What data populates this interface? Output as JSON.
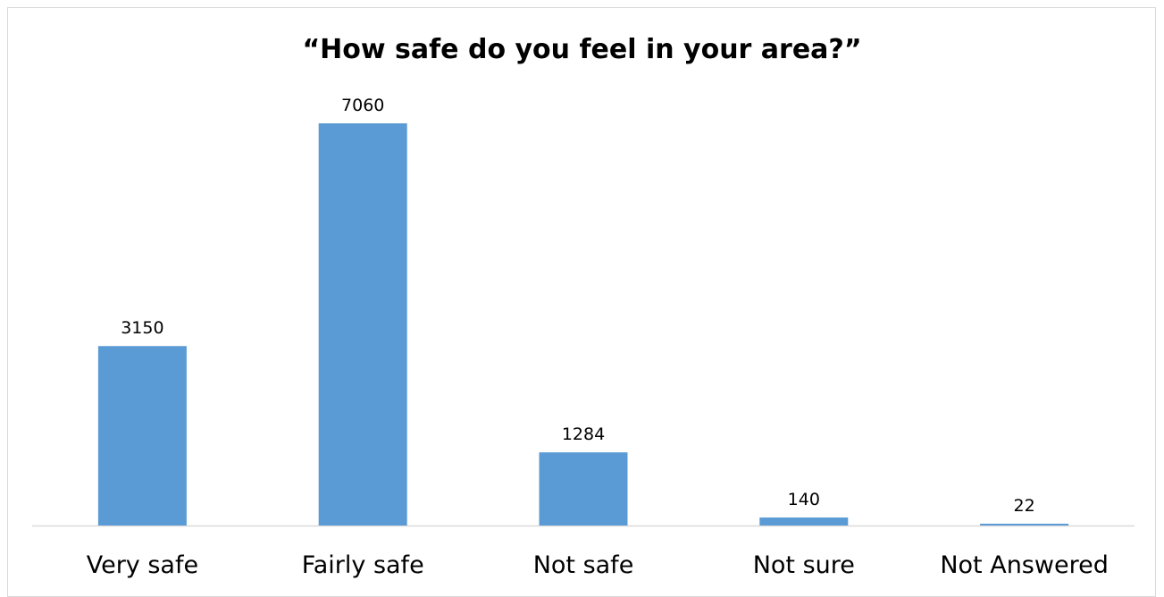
{
  "chart_data": {
    "type": "bar",
    "title": "“How safe do you feel in your area?”",
    "categories": [
      "Very safe",
      "Fairly safe",
      "Not safe",
      "Not sure",
      "Not Answered"
    ],
    "values": [
      3150,
      7060,
      1284,
      140,
      22
    ],
    "data_labels": [
      "3150",
      "7060",
      "1284",
      "140",
      "22"
    ],
    "ylim": [
      0,
      7060
    ],
    "xlabel": "",
    "ylabel": "",
    "grid": false,
    "legend": "none",
    "bar_color": "#5b9bd5",
    "axis_color": "#d9d9d9"
  }
}
